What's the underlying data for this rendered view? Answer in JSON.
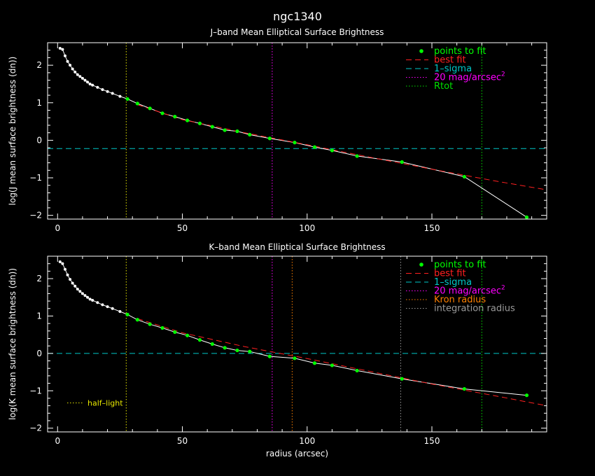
{
  "figure": {
    "title": "ngc1340"
  },
  "colors": {
    "background": "#000000",
    "axes": "#ffffff",
    "points": "#00ff00",
    "best_fit": "#ff2020",
    "sigma": "#00c8c8",
    "mag20": "#ff00ff",
    "rtot": "#00e000",
    "kron": "#ff8000",
    "integration": "#9a9a9a",
    "half_light": "#e8e800"
  },
  "chart_data": [
    {
      "type": "scatter",
      "title": "J–band Mean Elliptical Surface Brightness",
      "xlabel": "",
      "ylabel": "log(J mean surface brightness (dn))",
      "xlim": [
        -4,
        196
      ],
      "ylim": [
        -2.1,
        2.6
      ],
      "xticks": [
        0,
        50,
        100,
        150
      ],
      "xtick_labels": [
        "0",
        "50",
        "100",
        "150"
      ],
      "yticks": [
        -2,
        -1,
        0,
        1,
        2
      ],
      "ytick_labels": [
        "−2",
        "−1",
        "0",
        "1",
        "2"
      ],
      "grid": false,
      "legend_position": "top-right",
      "legend": [
        {
          "label": "points to fit",
          "style": "dot",
          "color": "#00ff00"
        },
        {
          "label": "best fit",
          "style": "dash",
          "color": "#ff2020"
        },
        {
          "label": "1–sigma",
          "style": "dash",
          "color": "#00c8c8"
        },
        {
          "label": "20 mag/arcsec",
          "sup": "2",
          "style": "dot-line",
          "color": "#ff00ff"
        },
        {
          "label": "Rtot",
          "style": "dot-line",
          "color": "#00e000"
        }
      ],
      "profile": {
        "x": [
          1,
          2,
          3,
          4,
          5,
          6,
          7,
          8,
          9,
          10,
          11,
          12,
          13,
          14,
          16,
          18,
          20,
          22,
          25,
          28,
          32,
          37,
          42,
          47,
          52,
          57,
          62,
          67,
          72,
          77,
          85,
          95,
          103,
          110,
          120,
          138,
          163,
          188
        ],
        "y": [
          2.45,
          2.42,
          2.25,
          2.1,
          2.0,
          1.9,
          1.82,
          1.75,
          1.7,
          1.65,
          1.6,
          1.55,
          1.5,
          1.47,
          1.41,
          1.35,
          1.3,
          1.25,
          1.17,
          1.1,
          0.98,
          0.85,
          0.72,
          0.63,
          0.53,
          0.45,
          0.36,
          0.27,
          0.24,
          0.15,
          0.05,
          -0.06,
          -0.18,
          -0.27,
          -0.42,
          -0.58,
          -0.97,
          -2.05
        ],
        "fit_start_index": 19
      },
      "best_fit_line": {
        "x": [
          32,
          50,
          75,
          100,
          125,
          150,
          175,
          196
        ],
        "y": [
          0.95,
          0.55,
          0.2,
          -0.12,
          -0.45,
          -0.77,
          -1.08,
          -1.32
        ]
      },
      "sigma_level": -0.22,
      "vlines": [
        {
          "x": 27.5,
          "color": "#e8e800"
        },
        {
          "x": 86,
          "color": "#ff00ff"
        },
        {
          "x": 170,
          "color": "#00e000"
        }
      ]
    },
    {
      "type": "scatter",
      "title": "K–band Mean Elliptical Surface Brightness",
      "xlabel": "radius (arcsec)",
      "ylabel": "log(K mean surface brightness (dn))",
      "xlim": [
        -4,
        196
      ],
      "ylim": [
        -2.1,
        2.6
      ],
      "xticks": [
        0,
        50,
        100,
        150
      ],
      "xtick_labels": [
        "0",
        "50",
        "100",
        "150"
      ],
      "yticks": [
        -2,
        -1,
        0,
        1,
        2
      ],
      "ytick_labels": [
        "−2",
        "−1",
        "0",
        "1",
        "2"
      ],
      "grid": false,
      "legend_position": "top-right",
      "legend": [
        {
          "label": "points to fit",
          "style": "dot",
          "color": "#00ff00"
        },
        {
          "label": "best fit",
          "style": "dash",
          "color": "#ff2020"
        },
        {
          "label": "1–sigma",
          "style": "dash",
          "color": "#00c8c8"
        },
        {
          "label": "20 mag/arcsec",
          "sup": "2",
          "style": "dot-line",
          "color": "#ff00ff"
        },
        {
          "label": "Kron radius",
          "style": "dot-line",
          "color": "#ff8000"
        },
        {
          "label": "integration radius",
          "style": "dot-line",
          "color": "#9a9a9a"
        }
      ],
      "annotation": {
        "label": "half–light",
        "color": "#e8e800"
      },
      "profile": {
        "x": [
          1,
          2,
          3,
          4,
          5,
          6,
          7,
          8,
          9,
          10,
          11,
          12,
          13,
          14,
          16,
          18,
          20,
          22,
          25,
          28,
          32,
          37,
          42,
          47,
          52,
          57,
          62,
          67,
          72,
          77,
          85,
          95,
          103,
          110,
          120,
          138,
          163,
          188
        ],
        "y": [
          2.45,
          2.4,
          2.25,
          2.1,
          1.98,
          1.88,
          1.8,
          1.72,
          1.66,
          1.6,
          1.55,
          1.5,
          1.45,
          1.42,
          1.36,
          1.3,
          1.25,
          1.2,
          1.12,
          1.04,
          0.9,
          0.78,
          0.68,
          0.57,
          0.48,
          0.36,
          0.25,
          0.15,
          0.08,
          0.05,
          -0.08,
          -0.13,
          -0.26,
          -0.32,
          -0.46,
          -0.68,
          -0.95,
          -1.12
        ],
        "fit_start_index": 19
      },
      "best_fit_line": {
        "x": [
          32,
          50,
          75,
          100,
          125,
          150,
          175,
          196
        ],
        "y": [
          0.93,
          0.55,
          0.18,
          -0.14,
          -0.48,
          -0.82,
          -1.13,
          -1.4
        ]
      },
      "sigma_level": 0.0,
      "vlines": [
        {
          "x": 27.5,
          "color": "#e8e800"
        },
        {
          "x": 86,
          "color": "#ff00ff"
        },
        {
          "x": 94,
          "color": "#ff8000"
        },
        {
          "x": 137.5,
          "color": "#9a9a9a"
        },
        {
          "x": 170,
          "color": "#00e000"
        }
      ]
    }
  ]
}
